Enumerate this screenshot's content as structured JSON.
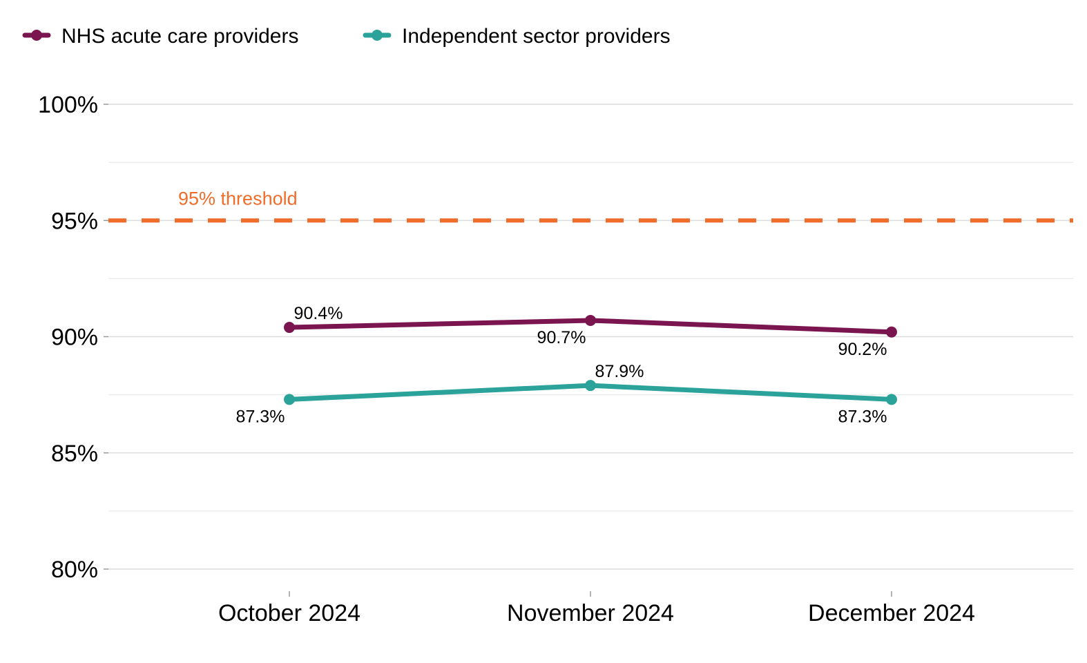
{
  "chart_data": {
    "type": "line",
    "categories": [
      "October 2024",
      "November 2024",
      "December 2024"
    ],
    "series": [
      {
        "name": "NHS acute care providers",
        "values": [
          90.4,
          90.7,
          90.2
        ],
        "labels": [
          "90.4%",
          "90.7%",
          "90.2%"
        ],
        "label_positions": [
          "above",
          "below",
          "below"
        ],
        "color": "#7b1550"
      },
      {
        "name": "Independent sector providers",
        "values": [
          87.3,
          87.9,
          87.3
        ],
        "labels": [
          "87.3%",
          "87.9%",
          "87.3%"
        ],
        "label_positions": [
          "below",
          "above",
          "below"
        ],
        "color": "#2ba39a"
      }
    ],
    "reference_line": {
      "value": 95,
      "label": "95% threshold",
      "color": "#f06c2a",
      "style": "dashed"
    },
    "ylim": [
      80,
      100
    ],
    "yticks": [
      80,
      85,
      90,
      95,
      100
    ],
    "ytick_labels": [
      "80%",
      "85%",
      "90%",
      "95%",
      "100%"
    ],
    "grid": "horizontal, major and minor",
    "legend_position": "top-left",
    "title": "",
    "xlabel": "",
    "ylabel": ""
  }
}
